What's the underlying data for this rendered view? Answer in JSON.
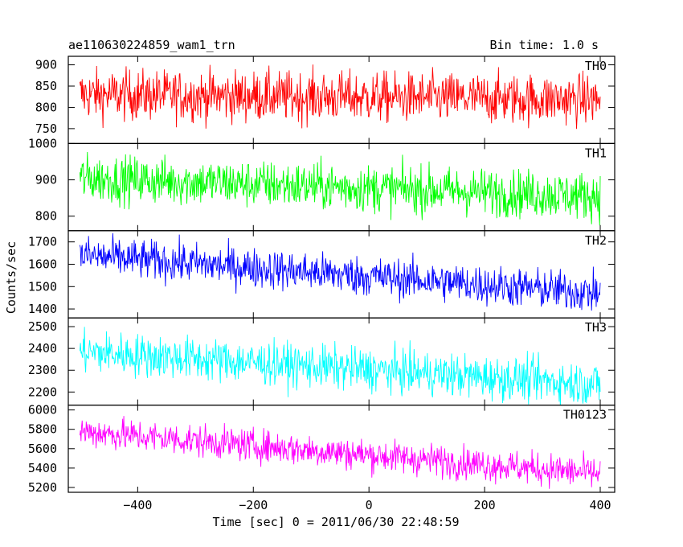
{
  "chart_data": {
    "type": "line",
    "title": "ae110630224859_wam1_trn",
    "subtitle": "Bin time: 1.0 s",
    "xlabel": "Time [sec] 0 = 2011/06/30 22:48:59",
    "ylabel": "Counts/sec",
    "xlim": [
      -520,
      425
    ],
    "x_start": -500,
    "x_end": 400,
    "x_step": 1,
    "x_ticks": [
      -400,
      -200,
      0,
      200,
      400
    ],
    "x_tick_labels": [
      "−400",
      "−200",
      "0",
      "200",
      "400"
    ],
    "panels": [
      {
        "name": "TH0",
        "color": "#ff0000",
        "ylim": [
          715,
          920
        ],
        "y_ticks": [
          750,
          800,
          850,
          900
        ],
        "y_tick_labels": [
          "750",
          "800",
          "850",
          "900"
        ],
        "trend_start": 830,
        "trend_end": 818,
        "scatter": 30
      },
      {
        "name": "TH1",
        "color": "#00ff00",
        "ylim": [
          760,
          1000
        ],
        "y_ticks": [
          800,
          900,
          1000
        ],
        "y_tick_labels": [
          "800",
          "900",
          "1000"
        ],
        "trend_start": 905,
        "trend_end": 855,
        "scatter": 33
      },
      {
        "name": "TH2",
        "color": "#0000ff",
        "ylim": [
          1360,
          1750
        ],
        "y_ticks": [
          1400,
          1500,
          1600,
          1700
        ],
        "y_tick_labels": [
          "1400",
          "1500",
          "1600",
          "1700"
        ],
        "trend_start": 1640,
        "trend_end": 1470,
        "scatter": 45
      },
      {
        "name": "TH3",
        "color": "#00ffff",
        "ylim": [
          2140,
          2540
        ],
        "y_ticks": [
          2200,
          2300,
          2400,
          2500
        ],
        "y_tick_labels": [
          "2200",
          "2300",
          "2400",
          "2500"
        ],
        "trend_start": 2385,
        "trend_end": 2235,
        "scatter": 50
      },
      {
        "name": "TH0123",
        "color": "#ff00ff",
        "ylim": [
          5150,
          6050
        ],
        "y_ticks": [
          5200,
          5400,
          5600,
          5800,
          6000
        ],
        "y_tick_labels": [
          "5200",
          "5400",
          "5600",
          "5800",
          "6000"
        ],
        "trend_start": 5780,
        "trend_end": 5340,
        "scatter": 85
      }
    ]
  }
}
